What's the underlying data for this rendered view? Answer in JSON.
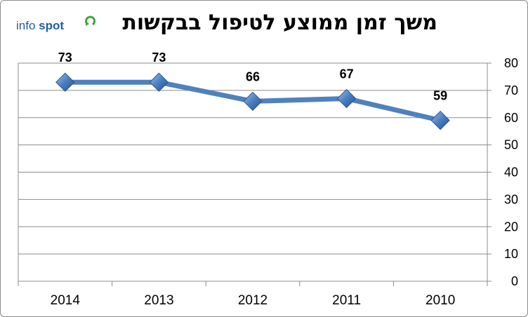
{
  "logo": {
    "word1": "info",
    "word2": "spot"
  },
  "chart_data": {
    "type": "line",
    "title": "משך זמן ממוצע לטיפול בבקשות",
    "categories": [
      "2014",
      "2013",
      "2012",
      "2011",
      "2010"
    ],
    "series": [
      {
        "values": [
          73,
          73,
          66,
          67,
          59
        ]
      }
    ],
    "ylim": [
      0,
      80
    ],
    "yticks": [
      0,
      10,
      20,
      30,
      40,
      50,
      60,
      70,
      80
    ],
    "y_axis_side": "right",
    "grid": true,
    "data_labels": true,
    "legend": "none",
    "colors": {
      "line": "#4f81bd",
      "marker": "#4a7ebf",
      "grid": "#8c8c8c",
      "logo": "#1f5fa8",
      "logo_accent": "#3aa935"
    }
  }
}
